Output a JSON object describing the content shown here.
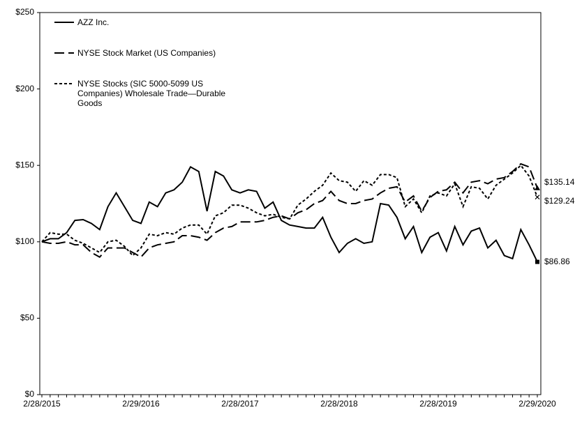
{
  "chart_data": {
    "type": "line",
    "categories": [
      "2/28/2015",
      null,
      null,
      null,
      null,
      null,
      null,
      null,
      null,
      null,
      null,
      null,
      "2/29/2016",
      null,
      null,
      null,
      null,
      null,
      null,
      null,
      null,
      null,
      null,
      null,
      "2/28/2017",
      null,
      null,
      null,
      null,
      null,
      null,
      null,
      null,
      null,
      null,
      null,
      "2/28/2018",
      null,
      null,
      null,
      null,
      null,
      null,
      null,
      null,
      null,
      null,
      null,
      "2/28/2019",
      null,
      null,
      null,
      null,
      null,
      null,
      null,
      null,
      null,
      null,
      null,
      "2/29/2020"
    ],
    "series": [
      {
        "name": "AZZ Inc.",
        "color": "#000000",
        "dash": "none",
        "values": [
          100,
          102,
          102,
          106,
          114,
          114.5,
          112,
          108,
          123,
          132,
          123,
          114,
          112,
          126,
          123,
          132,
          134,
          139,
          149,
          146,
          120,
          146,
          143,
          134,
          132,
          134,
          133,
          122,
          126,
          114,
          111,
          110,
          109,
          109,
          116,
          103,
          93,
          99,
          102,
          99,
          100,
          125,
          124,
          116,
          102,
          110,
          93,
          103,
          106,
          94,
          110,
          98,
          107,
          109,
          96,
          101,
          91,
          89,
          108,
          98,
          86.86
        ],
        "value_labels": [
          null,
          null,
          null,
          null,
          null,
          null,
          null,
          null,
          null,
          null,
          null,
          null,
          null,
          null,
          null,
          null,
          null,
          null,
          null,
          null,
          null,
          null,
          null,
          null,
          null,
          null,
          null,
          null,
          null,
          null,
          null,
          null,
          null,
          null,
          null,
          null,
          null,
          null,
          null,
          null,
          null,
          null,
          null,
          null,
          null,
          null,
          null,
          null,
          null,
          null,
          null,
          null,
          null,
          null,
          null,
          null,
          null,
          null,
          null,
          null,
          "$86.86"
        ]
      },
      {
        "name": "NYSE Stock Market (US Companies)",
        "color": "#000000",
        "dash": "14 6",
        "values": [
          100,
          99,
          99,
          100,
          98,
          98,
          93,
          90,
          96,
          96,
          96,
          93,
          90,
          96,
          98,
          99,
          100,
          104,
          104,
          103,
          101,
          106,
          109,
          110,
          113,
          113,
          113,
          114,
          116,
          117,
          115,
          119,
          121,
          125,
          127,
          133,
          127,
          125,
          125,
          127,
          128,
          132,
          135,
          136,
          126,
          130,
          120,
          129,
          133,
          134,
          139,
          132,
          139,
          140,
          138,
          141,
          142,
          146,
          151,
          149,
          135.14
        ],
        "value_labels": [
          null,
          null,
          null,
          null,
          null,
          null,
          null,
          null,
          null,
          null,
          null,
          null,
          null,
          null,
          null,
          null,
          null,
          null,
          null,
          null,
          null,
          null,
          null,
          null,
          null,
          null,
          null,
          null,
          null,
          null,
          null,
          null,
          null,
          null,
          null,
          null,
          null,
          null,
          null,
          null,
          null,
          null,
          null,
          null,
          null,
          null,
          null,
          null,
          null,
          null,
          null,
          null,
          null,
          null,
          null,
          null,
          null,
          null,
          null,
          null,
          "$135.14"
        ]
      },
      {
        "name": "NYSE Stocks (SIC 5000-5099 US Companies) Wholesale Trade—Durable Goods",
        "color": "#000000",
        "dash": "4 3",
        "values": [
          100,
          106,
          105,
          105,
          101,
          99,
          96,
          93,
          100,
          101,
          97,
          91,
          96,
          105,
          104,
          106,
          105,
          109,
          111,
          111,
          105,
          117,
          119,
          124,
          124,
          122,
          119,
          117,
          118,
          116,
          115,
          124,
          128,
          133,
          137,
          145,
          140,
          139,
          133,
          140,
          137,
          144,
          144,
          142,
          123,
          128,
          119,
          130,
          132,
          130,
          138,
          123,
          136,
          135,
          128,
          137,
          141,
          145,
          150,
          143,
          129.24
        ],
        "value_labels": [
          null,
          null,
          null,
          null,
          null,
          null,
          null,
          null,
          null,
          null,
          null,
          null,
          null,
          null,
          null,
          null,
          null,
          null,
          null,
          null,
          null,
          null,
          null,
          null,
          null,
          null,
          null,
          null,
          null,
          null,
          null,
          null,
          null,
          null,
          null,
          null,
          null,
          null,
          null,
          null,
          null,
          null,
          null,
          null,
          null,
          null,
          null,
          null,
          null,
          null,
          null,
          null,
          null,
          null,
          null,
          null,
          null,
          null,
          null,
          null,
          "$129.24"
        ]
      }
    ],
    "ylim": [
      0,
      250
    ],
    "yticks": [
      {
        "value": 0,
        "label": "$0"
      },
      {
        "value": 50,
        "label": "$50"
      },
      {
        "value": 100,
        "label": "$100"
      },
      {
        "value": 150,
        "label": "$150"
      },
      {
        "value": 200,
        "label": "$200"
      },
      {
        "value": 250,
        "label": "$250"
      }
    ]
  }
}
